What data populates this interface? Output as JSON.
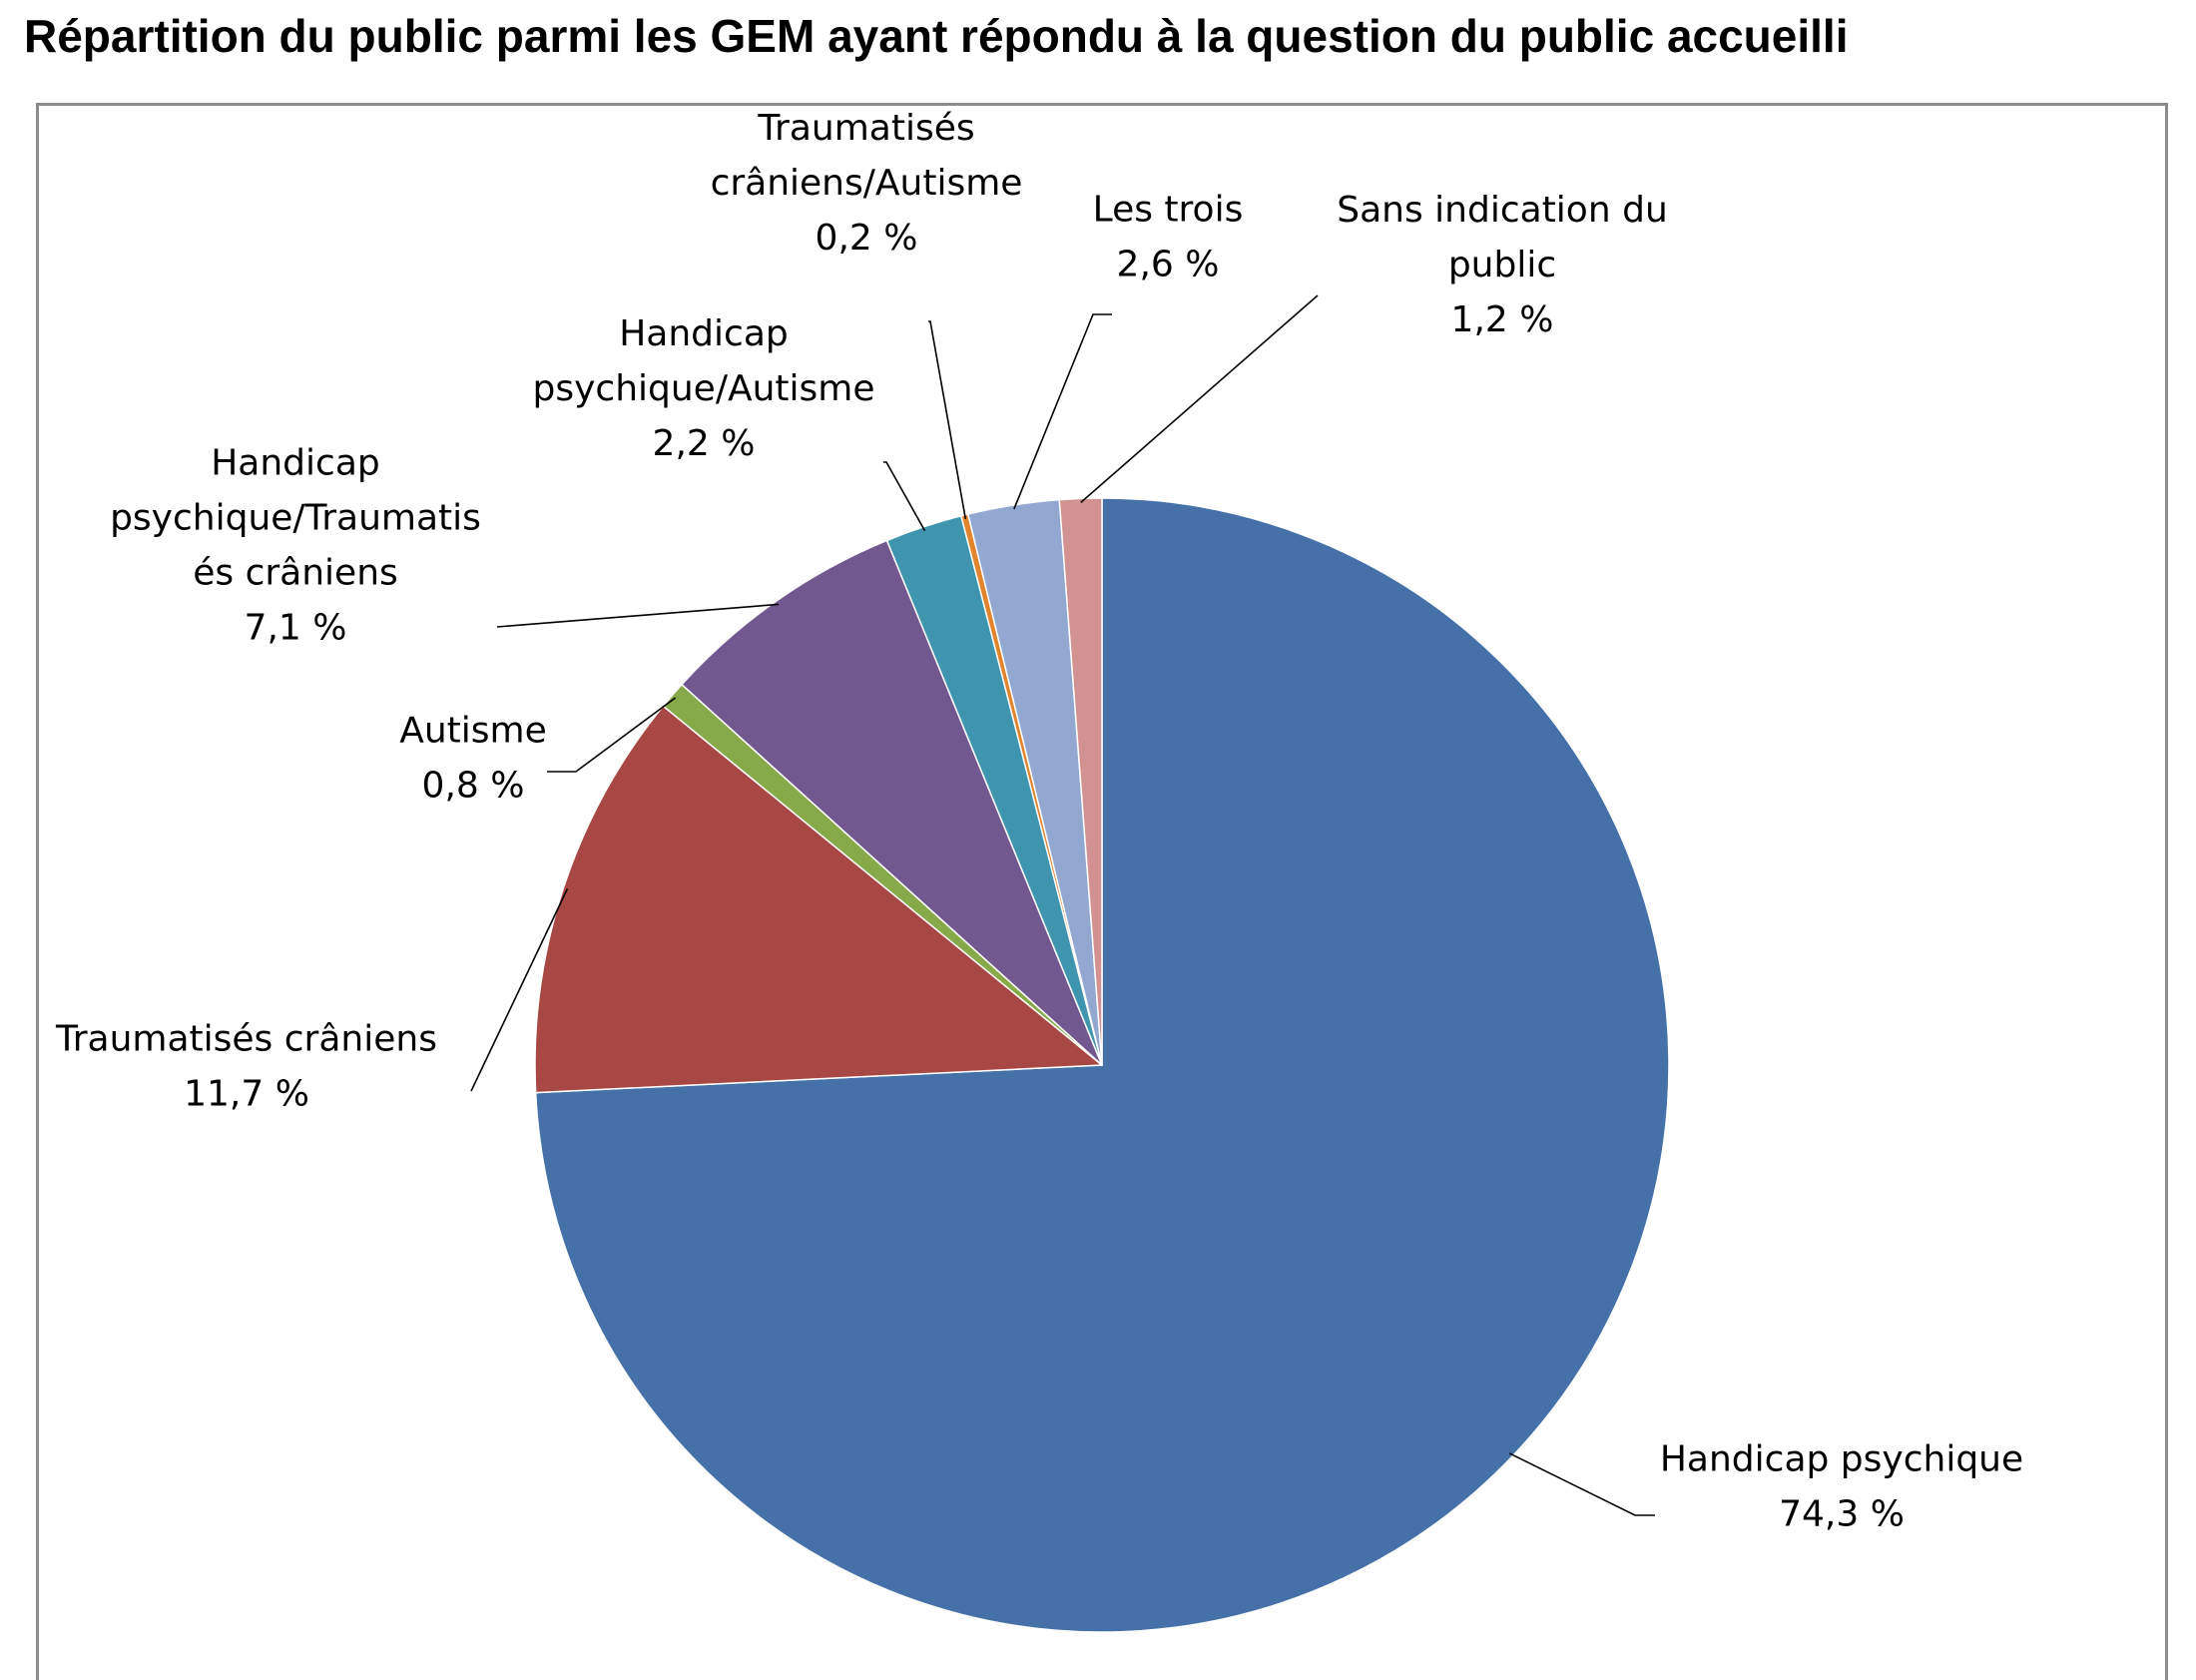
{
  "title": "Répartition du public parmi les GEM ayant répondu à la question du public accueilli",
  "chart_data": {
    "type": "pie",
    "title": "Répartition du public parmi les GEM ayant répondu à la question du public accueilli",
    "start_angle_deg": 0,
    "direction": "clockwise",
    "slices": [
      {
        "label_lines": [
          "Handicap psychique"
        ],
        "value": 74.3,
        "value_label": "74,3 %",
        "color": "#4571a8",
        "label_anchor": "start",
        "key": "handicap-psychique"
      },
      {
        "label_lines": [
          "Traumatisés crâniens"
        ],
        "value": 11.7,
        "value_label": "11,7 %",
        "color": "#a84845",
        "label_anchor": "middle",
        "key": "traumatises-craniens"
      },
      {
        "label_lines": [
          "Autisme"
        ],
        "value": 0.8,
        "value_label": "0,8 %",
        "color": "#87a94a",
        "label_anchor": "middle",
        "key": "autisme"
      },
      {
        "label_lines": [
          "Handicap",
          "psychique/Traumatis",
          "és crâniens"
        ],
        "value": 7.1,
        "value_label": "7,1 %",
        "color": "#71598f",
        "label_anchor": "middle",
        "key": "handicap-psychique-traumatises-craniens"
      },
      {
        "label_lines": [
          "Handicap",
          "psychique/Autisme"
        ],
        "value": 2.2,
        "value_label": "2,2 %",
        "color": "#3f95ad",
        "label_anchor": "middle",
        "key": "handicap-psychique-autisme"
      },
      {
        "label_lines": [
          "Traumatisés",
          "crâniens/Autisme"
        ],
        "value": 0.2,
        "value_label": "0,2 %",
        "color": "#e2832e",
        "label_anchor": "middle",
        "key": "traumatises-craniens-autisme"
      },
      {
        "label_lines": [
          "Les trois"
        ],
        "value": 2.6,
        "value_label": "2,6 %",
        "color": "#93a8d1",
        "label_anchor": "middle",
        "key": "les-trois"
      },
      {
        "label_lines": [
          "Sans indication du",
          "public"
        ],
        "value": 1.2,
        "value_label": "1,2 %",
        "color": "#d29291",
        "label_anchor": "middle",
        "key": "sans-indication-du-public"
      }
    ]
  }
}
